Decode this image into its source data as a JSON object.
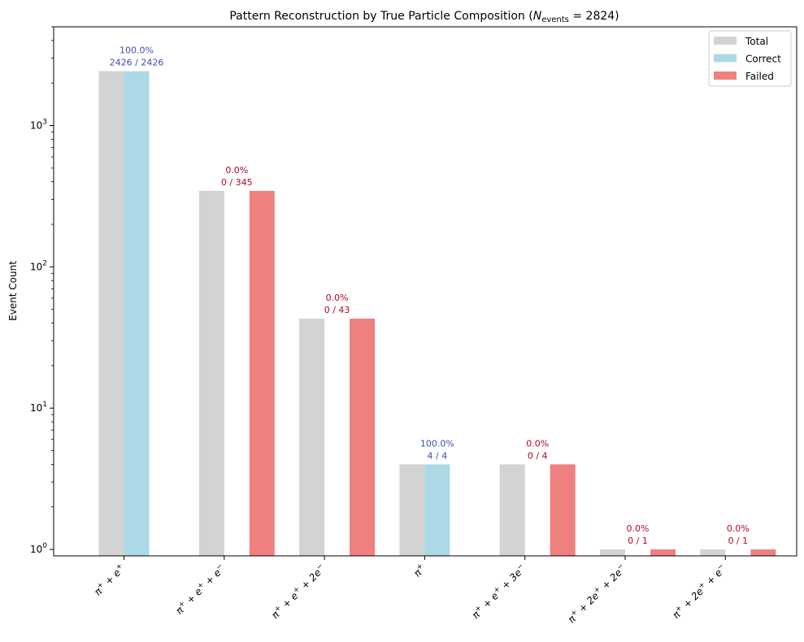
{
  "chart_data": {
    "type": "bar",
    "title": "Pattern Reconstruction by True Particle Composition (N_events = 2824)",
    "title_parts": {
      "prefix": "Pattern Reconstruction by True Particle Composition (",
      "n": "N",
      "sub": "events",
      "suffix": " = 2824)"
    },
    "xlabel": "",
    "ylabel": "Event Count",
    "yscale": "log",
    "ylim": [
      0.9,
      5000
    ],
    "yticks": [
      {
        "value": 1,
        "label": "10",
        "exp": "0"
      },
      {
        "value": 10,
        "label": "10",
        "exp": "1"
      },
      {
        "value": 100,
        "label": "10",
        "exp": "2"
      },
      {
        "value": 1000,
        "label": "10",
        "exp": "3"
      }
    ],
    "categories": [
      {
        "parts": [
          "π",
          "+",
          " + e",
          "+",
          ""
        ]
      },
      {
        "parts": [
          "π",
          "+",
          " + e",
          "+",
          " + e",
          "−",
          ""
        ]
      },
      {
        "parts": [
          "π",
          "+",
          " + e",
          "+",
          " + 2e",
          "−",
          ""
        ]
      },
      {
        "parts": [
          "π",
          "+",
          ""
        ]
      },
      {
        "parts": [
          "π",
          "+",
          " + e",
          "+",
          " + 3e",
          "−",
          ""
        ]
      },
      {
        "parts": [
          "π",
          "+",
          " + 2e",
          "+",
          " + 2e",
          "−",
          ""
        ]
      },
      {
        "parts": [
          "π",
          "+",
          " + 2e",
          "+",
          " + e",
          "−",
          ""
        ]
      }
    ],
    "category_text": [
      "π⁺ + e⁺",
      "π⁺ + e⁺ + e⁻",
      "π⁺ + e⁺ + 2e⁻",
      "π⁺",
      "π⁺ + e⁺ + 3e⁻",
      "π⁺ + 2e⁺ + 2e⁻",
      "π⁺ + 2e⁺ + e⁻"
    ],
    "series": [
      {
        "name": "Total",
        "color": "#d3d3d3",
        "values": [
          2426,
          345,
          43,
          4,
          4,
          1,
          1
        ]
      },
      {
        "name": "Correct",
        "color": "#add8e6",
        "values": [
          2426,
          0,
          0,
          4,
          0,
          0,
          0
        ]
      },
      {
        "name": "Failed",
        "color": "#f08080",
        "values": [
          0,
          345,
          43,
          0,
          4,
          1,
          1
        ]
      }
    ],
    "annotations": [
      {
        "pct": "100.0%",
        "frac": "2426 / 2426",
        "color": "#3b4cc0"
      },
      {
        "pct": "0.0%",
        "frac": "0 / 345",
        "color": "#b40426"
      },
      {
        "pct": "0.0%",
        "frac": "0 / 43",
        "color": "#b40426"
      },
      {
        "pct": "100.0%",
        "frac": "4 / 4",
        "color": "#3b4cc0"
      },
      {
        "pct": "0.0%",
        "frac": "0 / 4",
        "color": "#b40426"
      },
      {
        "pct": "0.0%",
        "frac": "0 / 1",
        "color": "#b40426"
      },
      {
        "pct": "0.0%",
        "frac": "0 / 1",
        "color": "#b40426"
      }
    ],
    "legend": {
      "position": "top-right",
      "entries": [
        "Total",
        "Correct",
        "Failed"
      ]
    },
    "grid": false
  }
}
